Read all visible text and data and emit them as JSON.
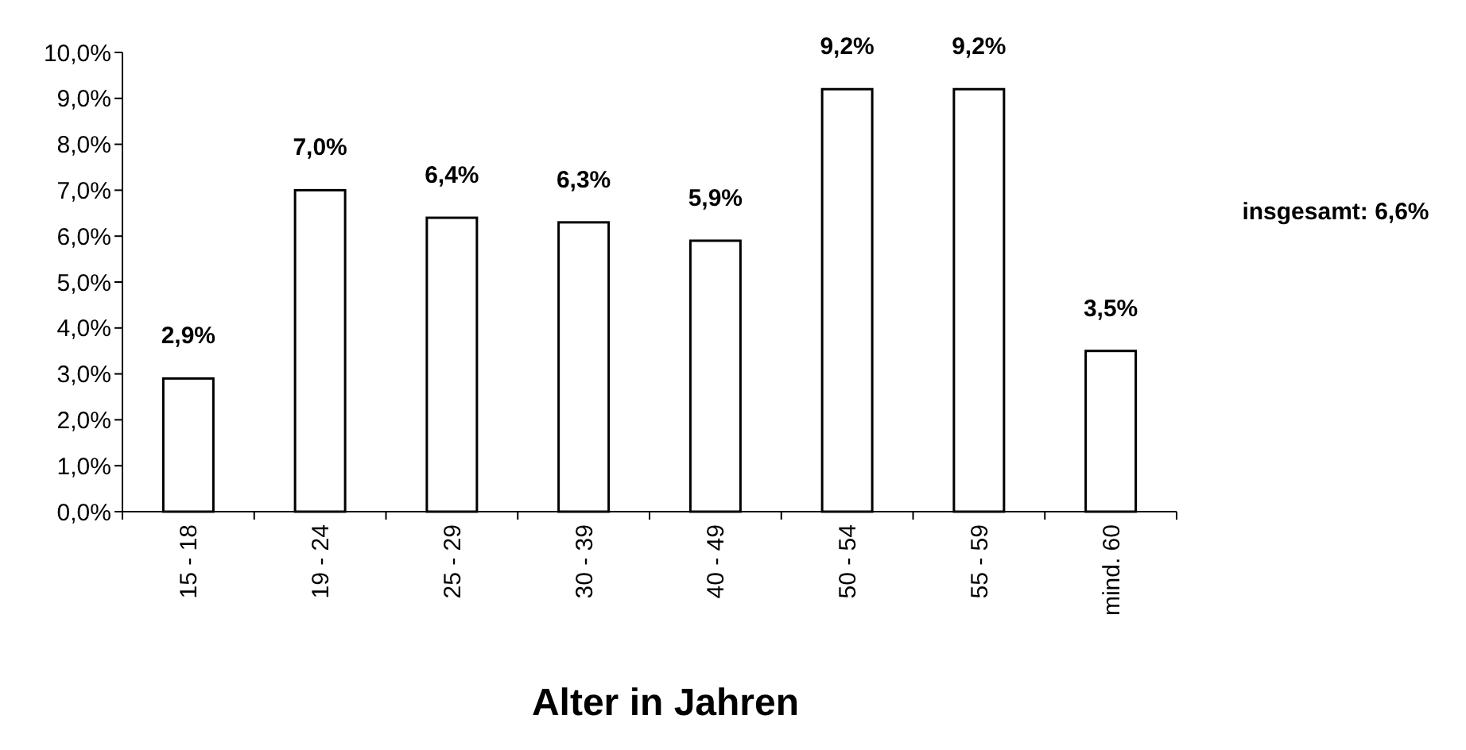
{
  "chart_data": {
    "type": "bar",
    "xlabel": "Alter in Jahren",
    "categories": [
      "15 - 18",
      "19 - 24",
      "25 - 29",
      "30 - 39",
      "40 - 49",
      "50 - 54",
      "55 - 59",
      "mind. 60"
    ],
    "values": [
      2.9,
      7.0,
      6.4,
      6.3,
      5.9,
      9.2,
      9.2,
      3.5
    ],
    "value_labels": [
      "2,9%",
      "7,0%",
      "6,4%",
      "6,3%",
      "5,9%",
      "9,2%",
      "9,2%",
      "3,5%"
    ],
    "color": "#ffffff",
    "ylim": [
      0,
      10
    ],
    "yticks": [
      {
        "value": 0,
        "label": "0,0%"
      },
      {
        "value": 1,
        "label": "1,0%"
      },
      {
        "value": 2,
        "label": "2,0%"
      },
      {
        "value": 3,
        "label": "3,0%"
      },
      {
        "value": 4,
        "label": "4,0%"
      },
      {
        "value": 5,
        "label": "5,0%"
      },
      {
        "value": 6,
        "label": "6,0%"
      },
      {
        "value": 7,
        "label": "7,0%"
      },
      {
        "value": 8,
        "label": "8,0%"
      },
      {
        "value": 9,
        "label": "9,0%"
      },
      {
        "value": 10,
        "label": "10,0%"
      }
    ],
    "annotations": [
      "insgesamt: 6,6%"
    ],
    "grid": false
  }
}
